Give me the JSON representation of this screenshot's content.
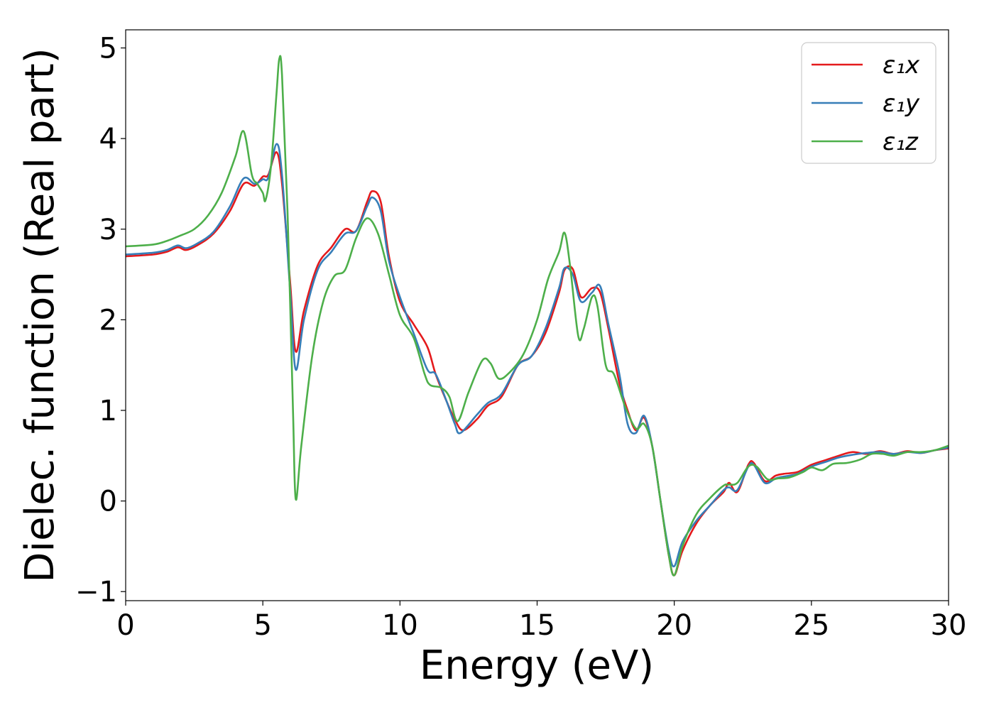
{
  "chart_data": {
    "type": "line",
    "title": "",
    "xlabel": "Energy (eV)",
    "ylabel": "Dielec. function (Real part)",
    "xlim": [
      0,
      30
    ],
    "ylim": [
      -1.1,
      5.2
    ],
    "xticks": [
      0,
      5,
      10,
      15,
      20,
      25,
      30
    ],
    "xtick_labels": [
      "0",
      "5",
      "10",
      "15",
      "20",
      "25",
      "30"
    ],
    "yticks": [
      -1,
      0,
      1,
      2,
      3,
      4,
      5
    ],
    "ytick_labels": [
      "−1",
      "0",
      "1",
      "2",
      "3",
      "4",
      "5"
    ],
    "grid": false,
    "legend_position": "top-right",
    "series": [
      {
        "name": "ε₁x",
        "color": "#e41a1c",
        "points": [
          [
            0,
            2.7
          ],
          [
            1,
            2.72
          ],
          [
            1.5,
            2.75
          ],
          [
            1.9,
            2.8
          ],
          [
            2.2,
            2.77
          ],
          [
            2.6,
            2.82
          ],
          [
            3.2,
            2.95
          ],
          [
            3.8,
            3.2
          ],
          [
            4.3,
            3.5
          ],
          [
            4.7,
            3.48
          ],
          [
            5.0,
            3.58
          ],
          [
            5.2,
            3.6
          ],
          [
            5.5,
            3.85
          ],
          [
            5.7,
            3.5
          ],
          [
            6.0,
            2.4
          ],
          [
            6.2,
            1.65
          ],
          [
            6.5,
            2.1
          ],
          [
            7.0,
            2.6
          ],
          [
            7.5,
            2.8
          ],
          [
            8.0,
            3.0
          ],
          [
            8.4,
            2.98
          ],
          [
            8.8,
            3.3
          ],
          [
            9.0,
            3.42
          ],
          [
            9.3,
            3.3
          ],
          [
            9.6,
            2.7
          ],
          [
            10.0,
            2.2
          ],
          [
            10.5,
            1.95
          ],
          [
            11.0,
            1.7
          ],
          [
            11.3,
            1.4
          ],
          [
            11.7,
            1.1
          ],
          [
            12.0,
            0.9
          ],
          [
            12.3,
            0.78
          ],
          [
            12.8,
            0.9
          ],
          [
            13.2,
            1.05
          ],
          [
            13.7,
            1.15
          ],
          [
            14.3,
            1.5
          ],
          [
            14.8,
            1.6
          ],
          [
            15.3,
            1.85
          ],
          [
            15.8,
            2.3
          ],
          [
            16.0,
            2.55
          ],
          [
            16.3,
            2.56
          ],
          [
            16.6,
            2.25
          ],
          [
            17.0,
            2.35
          ],
          [
            17.3,
            2.3
          ],
          [
            17.6,
            1.9
          ],
          [
            18.0,
            1.3
          ],
          [
            18.3,
            1.0
          ],
          [
            18.6,
            0.78
          ],
          [
            18.9,
            0.92
          ],
          [
            19.2,
            0.6
          ],
          [
            19.5,
            0.0
          ],
          [
            19.8,
            -0.6
          ],
          [
            20.0,
            -0.82
          ],
          [
            20.3,
            -0.55
          ],
          [
            20.8,
            -0.25
          ],
          [
            21.3,
            -0.05
          ],
          [
            21.8,
            0.1
          ],
          [
            22.0,
            0.2
          ],
          [
            22.3,
            0.1
          ],
          [
            22.7,
            0.4
          ],
          [
            22.9,
            0.42
          ],
          [
            23.3,
            0.22
          ],
          [
            23.7,
            0.28
          ],
          [
            24.0,
            0.3
          ],
          [
            24.5,
            0.32
          ],
          [
            25.0,
            0.4
          ],
          [
            25.5,
            0.45
          ],
          [
            26.0,
            0.5
          ],
          [
            26.5,
            0.54
          ],
          [
            27.0,
            0.52
          ],
          [
            27.5,
            0.55
          ],
          [
            28.0,
            0.52
          ],
          [
            28.5,
            0.55
          ],
          [
            29.0,
            0.53
          ],
          [
            29.5,
            0.56
          ],
          [
            30.0,
            0.58
          ]
        ]
      },
      {
        "name": "ε₁y",
        "color": "#377eb8",
        "points": [
          [
            0,
            2.72
          ],
          [
            1,
            2.74
          ],
          [
            1.5,
            2.77
          ],
          [
            1.9,
            2.82
          ],
          [
            2.2,
            2.79
          ],
          [
            2.6,
            2.84
          ],
          [
            3.2,
            2.97
          ],
          [
            3.8,
            3.25
          ],
          [
            4.3,
            3.56
          ],
          [
            4.7,
            3.5
          ],
          [
            5.0,
            3.55
          ],
          [
            5.2,
            3.57
          ],
          [
            5.5,
            3.94
          ],
          [
            5.7,
            3.6
          ],
          [
            6.0,
            2.3
          ],
          [
            6.2,
            1.45
          ],
          [
            6.5,
            2.0
          ],
          [
            7.0,
            2.55
          ],
          [
            7.5,
            2.75
          ],
          [
            8.0,
            2.95
          ],
          [
            8.4,
            2.98
          ],
          [
            8.8,
            3.25
          ],
          [
            9.0,
            3.35
          ],
          [
            9.3,
            3.2
          ],
          [
            9.6,
            2.65
          ],
          [
            10.0,
            2.25
          ],
          [
            10.5,
            1.85
          ],
          [
            11.0,
            1.45
          ],
          [
            11.3,
            1.4
          ],
          [
            11.7,
            1.1
          ],
          [
            12.0,
            0.85
          ],
          [
            12.2,
            0.75
          ],
          [
            12.8,
            0.95
          ],
          [
            13.2,
            1.08
          ],
          [
            13.7,
            1.18
          ],
          [
            14.3,
            1.5
          ],
          [
            14.8,
            1.6
          ],
          [
            15.3,
            1.9
          ],
          [
            15.8,
            2.35
          ],
          [
            16.0,
            2.57
          ],
          [
            16.3,
            2.5
          ],
          [
            16.6,
            2.2
          ],
          [
            17.0,
            2.3
          ],
          [
            17.3,
            2.37
          ],
          [
            17.6,
            1.95
          ],
          [
            18.0,
            1.4
          ],
          [
            18.3,
            0.85
          ],
          [
            18.6,
            0.75
          ],
          [
            18.9,
            0.94
          ],
          [
            19.2,
            0.6
          ],
          [
            19.5,
            0.0
          ],
          [
            19.8,
            -0.55
          ],
          [
            20.0,
            -0.72
          ],
          [
            20.3,
            -0.45
          ],
          [
            20.8,
            -0.22
          ],
          [
            21.3,
            -0.05
          ],
          [
            21.8,
            0.12
          ],
          [
            22.0,
            0.15
          ],
          [
            22.3,
            0.12
          ],
          [
            22.7,
            0.38
          ],
          [
            22.9,
            0.4
          ],
          [
            23.3,
            0.2
          ],
          [
            23.7,
            0.25
          ],
          [
            24.0,
            0.27
          ],
          [
            24.5,
            0.3
          ],
          [
            25.0,
            0.38
          ],
          [
            25.5,
            0.43
          ],
          [
            26.0,
            0.48
          ],
          [
            26.5,
            0.51
          ],
          [
            27.0,
            0.53
          ],
          [
            27.5,
            0.54
          ],
          [
            28.0,
            0.52
          ],
          [
            28.5,
            0.54
          ],
          [
            29.0,
            0.53
          ],
          [
            29.5,
            0.56
          ],
          [
            30.0,
            0.59
          ]
        ]
      },
      {
        "name": "ε₁z",
        "color": "#4daf4a",
        "points": [
          [
            0,
            2.81
          ],
          [
            1,
            2.83
          ],
          [
            1.5,
            2.87
          ],
          [
            2.0,
            2.93
          ],
          [
            2.5,
            3.0
          ],
          [
            3.0,
            3.15
          ],
          [
            3.5,
            3.4
          ],
          [
            4.0,
            3.8
          ],
          [
            4.3,
            4.08
          ],
          [
            4.6,
            3.6
          ],
          [
            4.8,
            3.5
          ],
          [
            5.0,
            3.4
          ],
          [
            5.1,
            3.32
          ],
          [
            5.3,
            3.7
          ],
          [
            5.5,
            4.5
          ],
          [
            5.6,
            4.88
          ],
          [
            5.7,
            4.7
          ],
          [
            5.9,
            3.2
          ],
          [
            6.1,
            1.0
          ],
          [
            6.2,
            0.02
          ],
          [
            6.4,
            0.6
          ],
          [
            6.8,
            1.6
          ],
          [
            7.2,
            2.2
          ],
          [
            7.6,
            2.48
          ],
          [
            8.0,
            2.55
          ],
          [
            8.4,
            2.9
          ],
          [
            8.8,
            3.12
          ],
          [
            9.2,
            2.95
          ],
          [
            9.6,
            2.5
          ],
          [
            10.0,
            2.05
          ],
          [
            10.5,
            1.8
          ],
          [
            10.9,
            1.4
          ],
          [
            11.1,
            1.28
          ],
          [
            11.5,
            1.25
          ],
          [
            11.8,
            1.15
          ],
          [
            12.1,
            0.88
          ],
          [
            12.5,
            1.2
          ],
          [
            13.0,
            1.55
          ],
          [
            13.3,
            1.52
          ],
          [
            13.6,
            1.35
          ],
          [
            14.0,
            1.42
          ],
          [
            14.5,
            1.62
          ],
          [
            15.0,
            2.0
          ],
          [
            15.4,
            2.45
          ],
          [
            15.8,
            2.75
          ],
          [
            16.0,
            2.96
          ],
          [
            16.2,
            2.6
          ],
          [
            16.5,
            1.82
          ],
          [
            16.7,
            1.9
          ],
          [
            17.0,
            2.25
          ],
          [
            17.2,
            2.15
          ],
          [
            17.5,
            1.5
          ],
          [
            17.8,
            1.4
          ],
          [
            18.2,
            1.05
          ],
          [
            18.6,
            0.8
          ],
          [
            18.9,
            0.85
          ],
          [
            19.2,
            0.6
          ],
          [
            19.5,
            0.0
          ],
          [
            19.8,
            -0.6
          ],
          [
            20.0,
            -0.82
          ],
          [
            20.3,
            -0.5
          ],
          [
            20.8,
            -0.15
          ],
          [
            21.3,
            0.03
          ],
          [
            21.8,
            0.17
          ],
          [
            22.0,
            0.18
          ],
          [
            22.3,
            0.2
          ],
          [
            22.7,
            0.38
          ],
          [
            23.0,
            0.38
          ],
          [
            23.4,
            0.24
          ],
          [
            23.8,
            0.25
          ],
          [
            24.2,
            0.26
          ],
          [
            24.7,
            0.32
          ],
          [
            25.0,
            0.37
          ],
          [
            25.4,
            0.34
          ],
          [
            25.8,
            0.41
          ],
          [
            26.3,
            0.42
          ],
          [
            26.8,
            0.46
          ],
          [
            27.2,
            0.52
          ],
          [
            27.6,
            0.52
          ],
          [
            28.0,
            0.5
          ],
          [
            28.5,
            0.54
          ],
          [
            29.0,
            0.54
          ],
          [
            29.5,
            0.56
          ],
          [
            30.0,
            0.61
          ]
        ]
      }
    ]
  }
}
